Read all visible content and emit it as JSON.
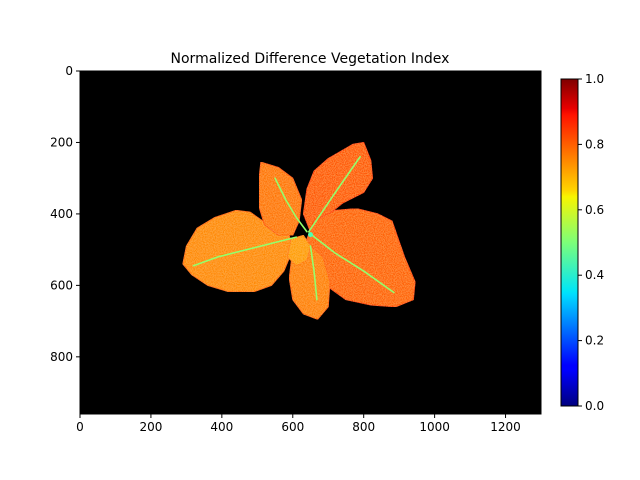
{
  "chart_data": [
    {
      "type": "heatmap",
      "title": "Normalized Difference Vegetation Index",
      "xlabel": "",
      "ylabel": "",
      "xlim": [
        0,
        1300
      ],
      "ylim": [
        960,
        0
      ],
      "x_ticks": [
        0,
        200,
        400,
        600,
        800,
        1000,
        1200
      ],
      "y_ticks": [
        0,
        200,
        400,
        600,
        800
      ],
      "background": "#000000",
      "colormap": "jet",
      "grid": false,
      "colorbar": {
        "range": [
          0.0,
          1.0
        ],
        "ticks": [
          "0.0",
          "0.2",
          "0.4",
          "0.6",
          "0.8",
          "1.0"
        ],
        "placement": "right"
      },
      "leaves": [
        {
          "name": "left leaf",
          "ndvi": 0.74,
          "outline": [
            [
              300,
              490
            ],
            [
              330,
              440
            ],
            [
              380,
              410
            ],
            [
              440,
              390
            ],
            [
              480,
              395
            ],
            [
              530,
              430
            ],
            [
              590,
              460
            ],
            [
              600,
              500
            ],
            [
              575,
              560
            ],
            [
              540,
              600
            ],
            [
              490,
              618
            ],
            [
              420,
              618
            ],
            [
              360,
              600
            ],
            [
              315,
              570
            ],
            [
              290,
              540
            ]
          ],
          "vein": [
            [
              320,
              545
            ],
            [
              390,
              520
            ],
            [
              470,
              500
            ],
            [
              550,
              480
            ],
            [
              610,
              465
            ]
          ]
        },
        {
          "name": "top center leaf",
          "ndvi": 0.76,
          "outline": [
            [
              510,
              255
            ],
            [
              560,
              270
            ],
            [
              600,
              300
            ],
            [
              625,
              360
            ],
            [
              618,
              420
            ],
            [
              600,
              460
            ],
            [
              560,
              460
            ],
            [
              520,
              430
            ],
            [
              505,
              380
            ],
            [
              505,
              300
            ]
          ],
          "vein": [
            [
              550,
              300
            ],
            [
              580,
              360
            ],
            [
              610,
              410
            ],
            [
              640,
              450
            ]
          ]
        },
        {
          "name": "top right leaf",
          "ndvi": 0.79,
          "outline": [
            [
              700,
              245
            ],
            [
              770,
              205
            ],
            [
              800,
              200
            ],
            [
              820,
              250
            ],
            [
              825,
              300
            ],
            [
              800,
              340
            ],
            [
              740,
              370
            ],
            [
              690,
              410
            ],
            [
              650,
              450
            ],
            [
              630,
              400
            ],
            [
              640,
              330
            ],
            [
              660,
              280
            ]
          ],
          "vein": [
            [
              645,
              450
            ],
            [
              720,
              340
            ],
            [
              790,
              240
            ]
          ]
        },
        {
          "name": "bottom right leaf",
          "ndvi": 0.78,
          "outline": [
            [
              660,
              420
            ],
            [
              720,
              390
            ],
            [
              780,
              385
            ],
            [
              840,
              400
            ],
            [
              880,
              420
            ],
            [
              915,
              520
            ],
            [
              945,
              590
            ],
            [
              940,
              640
            ],
            [
              890,
              660
            ],
            [
              820,
              655
            ],
            [
              750,
              640
            ],
            [
              680,
              590
            ],
            [
              640,
              520
            ],
            [
              640,
              470
            ]
          ],
          "vein": [
            [
              655,
              460
            ],
            [
              720,
              510
            ],
            [
              800,
              560
            ],
            [
              885,
              620
            ]
          ]
        },
        {
          "name": "bottom center leaf",
          "ndvi": 0.75,
          "outline": [
            [
              600,
              500
            ],
            [
              650,
              490
            ],
            [
              685,
              520
            ],
            [
              705,
              590
            ],
            [
              700,
              660
            ],
            [
              670,
              695
            ],
            [
              630,
              680
            ],
            [
              600,
              640
            ],
            [
              590,
              580
            ]
          ],
          "vein": [
            [
              650,
              490
            ],
            [
              660,
              560
            ],
            [
              668,
              640
            ]
          ]
        },
        {
          "name": "inner small leaf",
          "ndvi": 0.72,
          "outline": [
            [
              595,
              470
            ],
            [
              630,
              460
            ],
            [
              650,
              490
            ],
            [
              640,
              530
            ],
            [
              610,
              545
            ],
            [
              585,
              520
            ]
          ],
          "vein": []
        }
      ]
    }
  ]
}
